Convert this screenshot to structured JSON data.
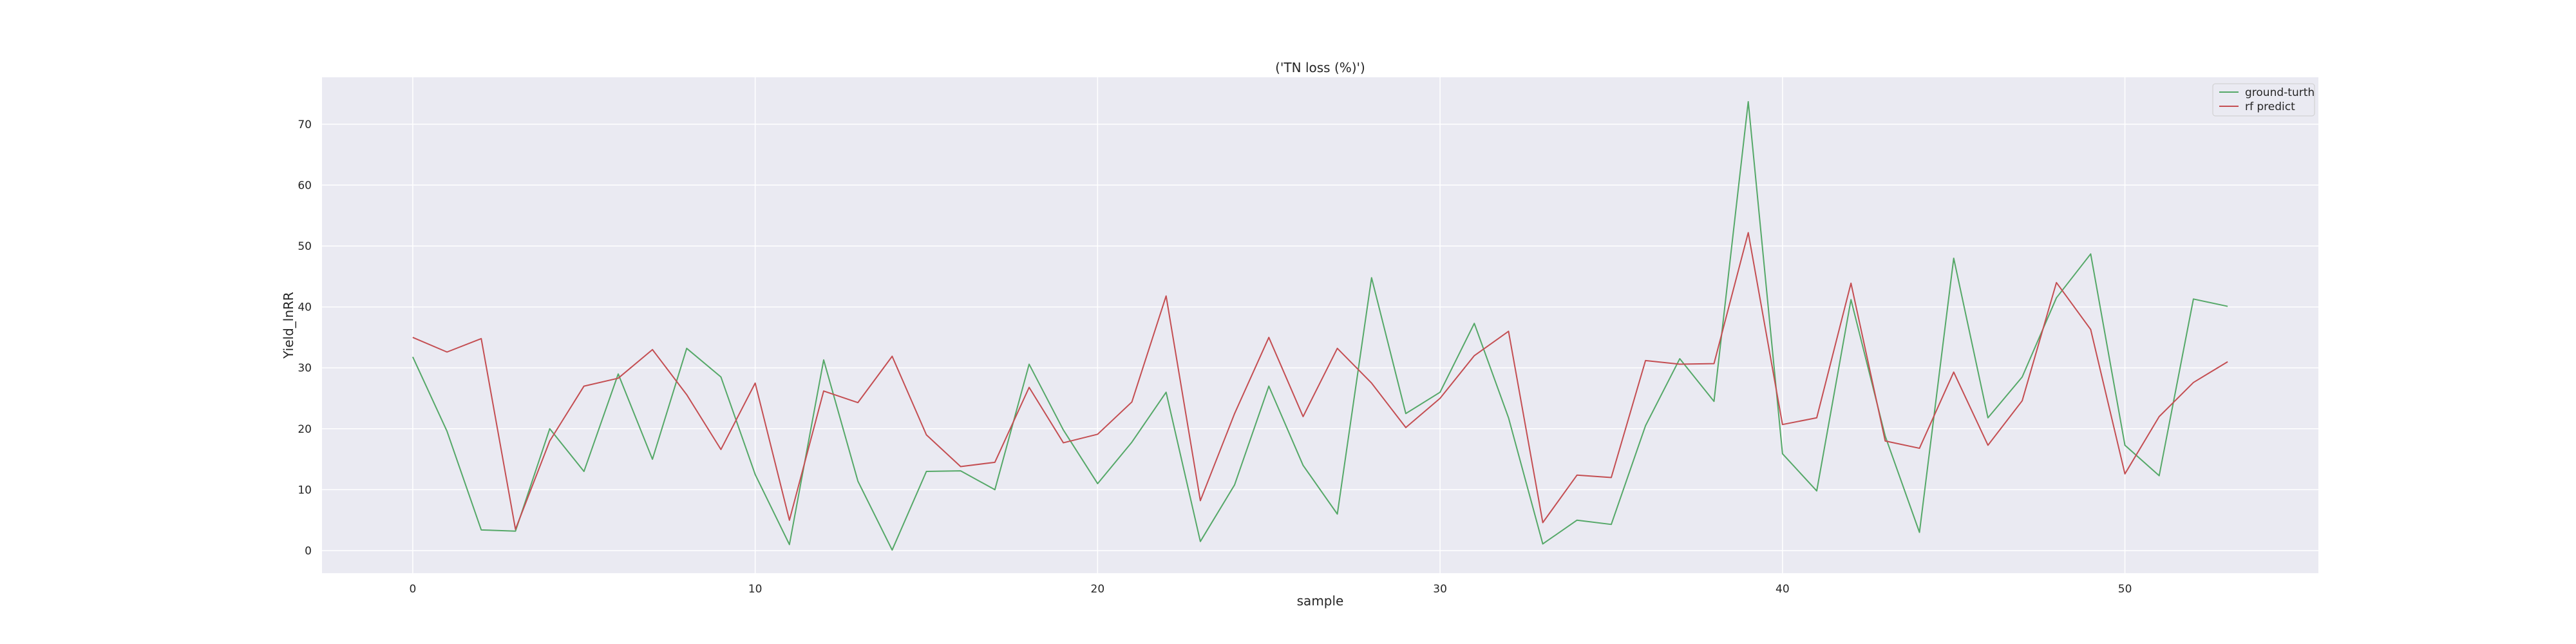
{
  "chart_data": {
    "type": "line",
    "title": "('TN loss (%)')",
    "xlabel": "sample",
    "ylabel": "Yield_lnRR",
    "xlim": [
      -2.65,
      55.65
    ],
    "ylim": [
      -3.7,
      77.7
    ],
    "x_ticks": [
      0,
      10,
      20,
      30,
      40,
      50
    ],
    "x_tick_labels": [
      "0",
      "10",
      "20",
      "30",
      "40",
      "50"
    ],
    "y_ticks": [
      0,
      10,
      20,
      30,
      40,
      50,
      60,
      70
    ],
    "y_tick_labels": [
      "0",
      "10",
      "20",
      "30",
      "40",
      "50",
      "60",
      "70"
    ],
    "grid": true,
    "legend_position": "top-right",
    "x": [
      0,
      1,
      2,
      3,
      4,
      5,
      6,
      7,
      8,
      9,
      10,
      11,
      12,
      13,
      14,
      15,
      16,
      17,
      18,
      19,
      20,
      21,
      22,
      23,
      24,
      25,
      26,
      27,
      28,
      29,
      30,
      31,
      32,
      33,
      34,
      35,
      36,
      37,
      38,
      39,
      40,
      41,
      42,
      43,
      44,
      45,
      46,
      47,
      48,
      49,
      50,
      51,
      52,
      53
    ],
    "series": [
      {
        "name": "ground-turth",
        "color": "#55a868",
        "values": [
          31.8,
          19.6,
          3.4,
          3.2,
          20.0,
          13.0,
          29.0,
          15.0,
          33.2,
          28.5,
          12.5,
          1.0,
          31.3,
          11.4,
          0.1,
          13.0,
          13.1,
          10.0,
          30.6,
          19.8,
          11.0,
          17.8,
          26.0,
          1.5,
          10.8,
          27.0,
          14.0,
          6.0,
          44.8,
          22.5,
          26.0,
          37.3,
          21.8,
          1.1,
          5.0,
          4.3,
          20.5,
          31.5,
          24.5,
          73.7,
          15.9,
          9.8,
          41.2,
          18.8,
          3.0,
          48.0,
          21.8,
          28.5,
          41.5,
          48.7,
          17.3,
          12.3,
          41.3,
          40.1
        ]
      },
      {
        "name": "rf predict",
        "color": "#c44e52",
        "values": [
          35.0,
          32.6,
          34.8,
          3.5,
          18.0,
          27.0,
          28.3,
          33.0,
          25.6,
          16.6,
          27.5,
          5.0,
          26.2,
          24.3,
          31.9,
          19.0,
          13.8,
          14.5,
          26.8,
          17.7,
          19.1,
          24.4,
          41.8,
          8.2,
          22.5,
          35.0,
          22.0,
          33.2,
          27.5,
          20.2,
          25.0,
          32.0,
          36.0,
          4.6,
          12.4,
          12.0,
          31.2,
          30.6,
          30.7,
          52.2,
          20.7,
          21.8,
          43.9,
          18.0,
          16.8,
          29.3,
          17.3,
          24.6,
          44.0,
          36.3,
          12.6,
          22.0,
          27.6,
          31.0
        ]
      }
    ]
  }
}
